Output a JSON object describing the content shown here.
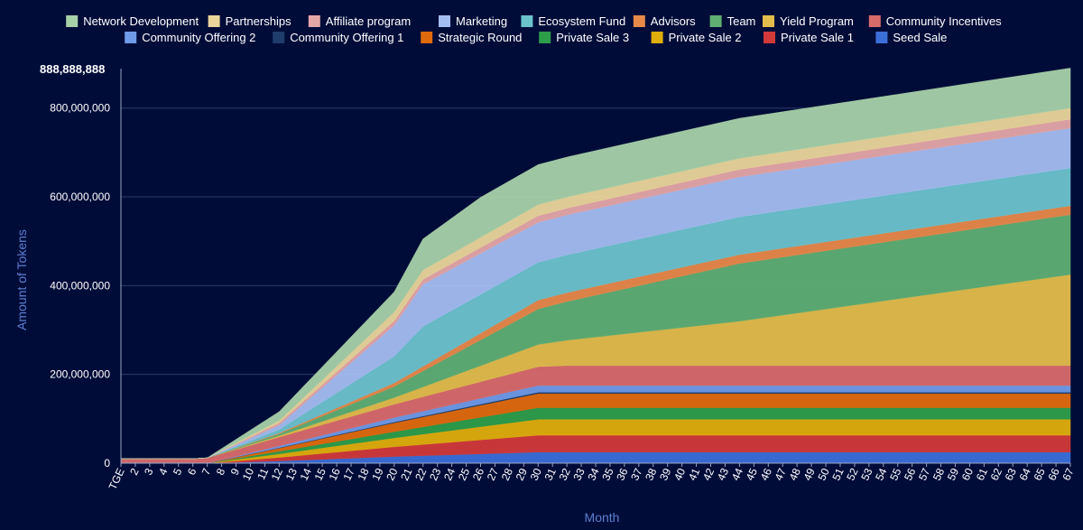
{
  "chart_data": {
    "type": "area",
    "stacked": true,
    "title": "",
    "xlabel": "Month",
    "ylabel": "Amount of Tokens",
    "max_label": "888,888,888",
    "ylim": [
      0,
      888888888
    ],
    "yticks": [
      0,
      200000000,
      400000000,
      600000000,
      800000000
    ],
    "ytick_labels": [
      "0",
      "200,000,000",
      "400,000,000",
      "600,000,000",
      "800,000,000"
    ],
    "x_start_label": "TGE",
    "x_count": 67,
    "legend_position": "top",
    "legend_order": [
      "Network Development",
      "Partnerships",
      "Affiliate program",
      "Marketing",
      "Ecosystem Fund",
      "Advisors",
      "Team",
      "Yield Program",
      "Community Incentives",
      "Community Offering 2",
      "Community Offering 1",
      "Strategic Round",
      "Private Sale 3",
      "Private Sale 2",
      "Private Sale 1",
      "Seed Sale"
    ],
    "series": [
      {
        "name": "Seed Sale",
        "color": "#3b6fd8",
        "points": [
          [
            1,
            0
          ],
          [
            7,
            0
          ],
          [
            12,
            5000000
          ],
          [
            20,
            15000000
          ],
          [
            30,
            25000000
          ],
          [
            67,
            25000000
          ]
        ]
      },
      {
        "name": "Private Sale 1",
        "color": "#d23a3a",
        "points": [
          [
            1,
            0
          ],
          [
            7,
            0
          ],
          [
            12,
            8000000
          ],
          [
            20,
            22000000
          ],
          [
            30,
            38000000
          ],
          [
            67,
            38000000
          ]
        ]
      },
      {
        "name": "Private Sale 2",
        "color": "#e0ae0c",
        "points": [
          [
            1,
            0
          ],
          [
            7,
            0
          ],
          [
            12,
            8000000
          ],
          [
            20,
            20000000
          ],
          [
            30,
            36000000
          ],
          [
            67,
            36000000
          ]
        ]
      },
      {
        "name": "Private Sale 3",
        "color": "#2e9e4a",
        "points": [
          [
            1,
            0
          ],
          [
            7,
            0
          ],
          [
            12,
            6000000
          ],
          [
            20,
            14000000
          ],
          [
            30,
            26000000
          ],
          [
            67,
            26000000
          ]
        ]
      },
      {
        "name": "Strategic Round",
        "color": "#e06a0c",
        "points": [
          [
            1,
            0
          ],
          [
            7,
            0
          ],
          [
            12,
            7000000
          ],
          [
            20,
            20000000
          ],
          [
            30,
            32000000
          ],
          [
            67,
            32000000
          ]
        ]
      },
      {
        "name": "Community Offering 1",
        "color": "#1e3d6b",
        "points": [
          [
            1,
            0
          ],
          [
            7,
            0
          ],
          [
            12,
            1000000
          ],
          [
            30,
            3000000
          ],
          [
            67,
            3000000
          ]
        ]
      },
      {
        "name": "Community Offering 2",
        "color": "#6f9be8",
        "points": [
          [
            1,
            0
          ],
          [
            7,
            0
          ],
          [
            12,
            4000000
          ],
          [
            20,
            10000000
          ],
          [
            30,
            15000000
          ],
          [
            67,
            15000000
          ]
        ]
      },
      {
        "name": "Community Incentives",
        "color": "#d96b6b",
        "points": [
          [
            1,
            10000000
          ],
          [
            6,
            10000000
          ],
          [
            7,
            12000000
          ],
          [
            12,
            20000000
          ],
          [
            20,
            30000000
          ],
          [
            32,
            45000000
          ],
          [
            67,
            45000000
          ]
        ]
      },
      {
        "name": "Yield Program",
        "color": "#e3bd4b",
        "points": [
          [
            1,
            0
          ],
          [
            7,
            0
          ],
          [
            12,
            3000000
          ],
          [
            20,
            15000000
          ],
          [
            30,
            50000000
          ],
          [
            44,
            100000000
          ],
          [
            67,
            205000000
          ]
        ]
      },
      {
        "name": "Team",
        "color": "#5faf73",
        "points": [
          [
            1,
            0
          ],
          [
            7,
            0
          ],
          [
            12,
            4000000
          ],
          [
            20,
            25000000
          ],
          [
            30,
            80000000
          ],
          [
            44,
            130000000
          ],
          [
            67,
            135000000
          ]
        ]
      },
      {
        "name": "Advisors",
        "color": "#e8894a",
        "points": [
          [
            1,
            0
          ],
          [
            7,
            0
          ],
          [
            12,
            2000000
          ],
          [
            20,
            8000000
          ],
          [
            30,
            20000000
          ],
          [
            44,
            20000000
          ],
          [
            67,
            20000000
          ]
        ]
      },
      {
        "name": "Ecosystem Fund",
        "color": "#6cc3cc",
        "points": [
          [
            1,
            0
          ],
          [
            7,
            0
          ],
          [
            12,
            8000000
          ],
          [
            20,
            60000000
          ],
          [
            22,
            90000000
          ],
          [
            30,
            85000000
          ],
          [
            44,
            85000000
          ],
          [
            67,
            85000000
          ]
        ]
      },
      {
        "name": "Marketing",
        "color": "#a4bdf0",
        "points": [
          [
            1,
            0
          ],
          [
            7,
            0
          ],
          [
            12,
            10000000
          ],
          [
            20,
            70000000
          ],
          [
            22,
            95000000
          ],
          [
            30,
            90000000
          ],
          [
            44,
            90000000
          ],
          [
            67,
            90000000
          ]
        ]
      },
      {
        "name": "Affiliate program",
        "color": "#e5a6a6",
        "points": [
          [
            1,
            0
          ],
          [
            7,
            0
          ],
          [
            12,
            5000000
          ],
          [
            20,
            10000000
          ],
          [
            30,
            15000000
          ],
          [
            67,
            20000000
          ]
        ]
      },
      {
        "name": "Partnerships",
        "color": "#ead59a",
        "points": [
          [
            1,
            0
          ],
          [
            7,
            0
          ],
          [
            12,
            5000000
          ],
          [
            20,
            20000000
          ],
          [
            30,
            25000000
          ],
          [
            67,
            25000000
          ]
        ]
      },
      {
        "name": "Network Development",
        "color": "#a7d1a8",
        "points": [
          [
            1,
            0
          ],
          [
            7,
            0
          ],
          [
            12,
            20000000
          ],
          [
            20,
            45000000
          ],
          [
            22,
            70000000
          ],
          [
            26,
            90000000
          ],
          [
            30,
            90000000
          ],
          [
            44,
            90000000
          ],
          [
            67,
            90000000
          ]
        ]
      }
    ]
  }
}
